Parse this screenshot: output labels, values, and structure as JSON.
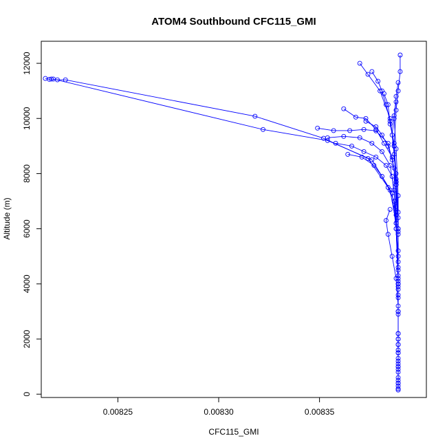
{
  "chart_data": {
    "type": "line",
    "title": "ATOM4 Southbound CFC115_GMI",
    "xlabel": "CFC115_GMI",
    "ylabel": "Altitude (m)",
    "xlim": [
      0.008212,
      0.008403
    ],
    "ylim": [
      -120,
      12800
    ],
    "x_ticks": [
      0.00825,
      0.0083,
      0.00835
    ],
    "x_tick_labels": [
      "0.00825",
      "0.00830",
      "0.00835"
    ],
    "y_ticks": [
      0,
      2000,
      4000,
      6000,
      8000,
      10000,
      12000
    ],
    "y_tick_labels": [
      "0",
      "2000",
      "4000",
      "6000",
      "8000",
      "10000",
      "12000"
    ],
    "grid": false,
    "legend": "none",
    "series_color": "#0000ff",
    "marker": "open-circle",
    "series": [
      {
        "x": [
          0.008214,
          0.008216,
          0.008217,
          0.00822,
          0.008224,
          0.008318,
          0.008352,
          0.008374,
          0.008385,
          0.008388,
          0.008389,
          0.008389,
          0.008389,
          0.008389,
          0.008389,
          0.008389,
          0.008389
        ],
        "y": [
          11450,
          11420,
          11430,
          11400,
          11400,
          10080,
          9280,
          8550,
          7400,
          6200,
          5000,
          4000,
          3000,
          2000,
          1000,
          400,
          150
        ]
      },
      {
        "x": [
          0.008218,
          0.008322,
          0.008354,
          0.008376,
          0.008386,
          0.008388,
          0.008389,
          0.008389,
          0.008389,
          0.008389,
          0.008389
        ],
        "y": [
          11430,
          9600,
          9200,
          8500,
          7300,
          6000,
          4500,
          3000,
          1500,
          500,
          200
        ]
      },
      {
        "x": [
          0.00837,
          0.008374,
          0.00838,
          0.008385,
          0.008387,
          0.008388,
          0.008389,
          0.008389,
          0.008389,
          0.008389
        ],
        "y": [
          12000,
          11600,
          11000,
          10000,
          9000,
          7600,
          6000,
          4000,
          2000,
          300
        ]
      },
      {
        "x": [
          0.00839,
          0.00839,
          0.008389,
          0.008388,
          0.008387,
          0.008388,
          0.008389,
          0.008389,
          0.008389,
          0.008389
        ],
        "y": [
          12300,
          11700,
          11000,
          10300,
          9000,
          7800,
          6000,
          3800,
          1800,
          400
        ]
      },
      {
        "x": [
          0.008376,
          0.008379,
          0.008381,
          0.008383,
          0.008385,
          0.008387,
          0.008388,
          0.008389,
          0.008389,
          0.008389
        ],
        "y": [
          11700,
          11350,
          11000,
          10500,
          9900,
          9000,
          7700,
          5800,
          3500,
          1200
        ]
      },
      {
        "x": [
          0.008362,
          0.008368,
          0.008373,
          0.008378,
          0.008382,
          0.008386,
          0.008388,
          0.008389,
          0.008389,
          0.008389
        ],
        "y": [
          10350,
          10050,
          10000,
          9600,
          9100,
          8600,
          7600,
          5900,
          3600,
          900
        ]
      },
      {
        "x": [
          0.008349,
          0.008357,
          0.008365,
          0.008372,
          0.008378,
          0.008384,
          0.008387,
          0.008388,
          0.008389,
          0.008389
        ],
        "y": [
          9650,
          9560,
          9560,
          9600,
          9550,
          9100,
          8200,
          6800,
          4200,
          1500
        ]
      },
      {
        "x": [
          0.008354,
          0.008362,
          0.00837,
          0.008376,
          0.008381,
          0.008385,
          0.008387,
          0.008388,
          0.008389,
          0.008389
        ],
        "y": [
          9300,
          9350,
          9300,
          9100,
          8800,
          8300,
          7400,
          6200,
          3900,
          1000
        ]
      },
      {
        "x": [
          0.008358,
          0.008366,
          0.008372,
          0.008378,
          0.008383,
          0.008386,
          0.008388,
          0.008389,
          0.008389
        ],
        "y": [
          9100,
          9000,
          8800,
          8600,
          8300,
          7900,
          6600,
          4600,
          2200
        ]
      },
      {
        "x": [
          0.008373,
          0.008378,
          0.008381,
          0.008384,
          0.008386,
          0.008388,
          0.008388,
          0.008389,
          0.008389
        ],
        "y": [
          9900,
          9700,
          9400,
          9000,
          8500,
          7700,
          6500,
          4300,
          1600
        ]
      },
      {
        "x": [
          0.008388,
          0.008387,
          0.008386,
          0.008387,
          0.008388,
          0.008389,
          0.008389,
          0.008389,
          0.008389
        ],
        "y": [
          10600,
          10100,
          9400,
          8700,
          7700,
          6400,
          4800,
          2900,
          800
        ]
      },
      {
        "x": [
          0.008364,
          0.008371,
          0.008377,
          0.008381,
          0.008384,
          0.008387,
          0.008388,
          0.008389,
          0.008389
        ],
        "y": [
          8700,
          8600,
          8300,
          7900,
          7500,
          7000,
          6000,
          4000,
          1800
        ]
      },
      {
        "x": [
          0.008385,
          0.008383,
          0.008384,
          0.008386,
          0.008388,
          0.008389,
          0.008389,
          0.008389
        ],
        "y": [
          6700,
          6300,
          5800,
          5000,
          4200,
          3200,
          2200,
          1100
        ]
      },
      {
        "x": [
          0.008389,
          0.008388,
          0.008387,
          0.008388,
          0.008389,
          0.008389,
          0.008389,
          0.008389
        ],
        "y": [
          11300,
          10800,
          10000,
          8900,
          7200,
          5200,
          3000,
          600
        ]
      },
      {
        "x": [
          0.008382,
          0.008384,
          0.008385,
          0.008387,
          0.008388,
          0.008389,
          0.008389,
          0.008389
        ],
        "y": [
          10900,
          10500,
          9800,
          9100,
          8000,
          6600,
          4100,
          1300
        ]
      }
    ]
  }
}
